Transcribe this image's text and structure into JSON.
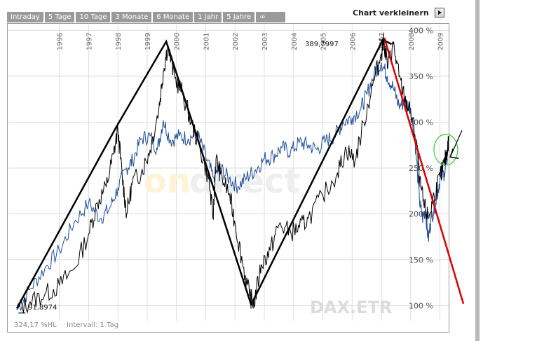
{
  "tabs": [
    "Intraday",
    "5 Tage",
    "10 Tage",
    "3 Monate",
    "6 Monate",
    "1 Jahr",
    "5 Jahre",
    "∞"
  ],
  "shrink_label": "Chart verkleinern",
  "watermark": {
    "part1": "on",
    "part2": "direct"
  },
  "index_name": "DAX.ETR",
  "footer": {
    "left": "324,17 %HL",
    "right": "Intervall: 1 Tag"
  },
  "colors": {
    "dax_line": "#000000",
    "compare_line": "#1f4f9a",
    "trend_red": "#dd0000",
    "circle": "#33cc33",
    "grid": "#dddddd"
  },
  "chart_data": {
    "type": "line",
    "x_tick_labels": [
      "1996",
      "1997",
      "1998",
      "1999",
      "2000",
      "2001",
      "2002",
      "2003",
      "2004",
      "2005",
      "2006",
      "2007",
      "2008",
      "2009"
    ],
    "y_tick_labels": [
      "400 %",
      "350 %",
      "300 %",
      "250 %",
      "200 %",
      "150 %",
      "100 %"
    ],
    "ylim": [
      85,
      405
    ],
    "xlim": [
      1995.0,
      2010.3
    ],
    "grid": true,
    "annotations": {
      "min_label": "91,8974",
      "max_label": "389,7997",
      "min_point": [
        1995.2,
        91.9
      ],
      "max_point": [
        2007.55,
        389.8
      ]
    },
    "series": [
      {
        "values": [
          [
            1995.05,
            96
          ],
          [
            1995.5,
            104
          ],
          [
            1996.0,
            112
          ],
          [
            1996.5,
            122
          ],
          [
            1997.0,
            140
          ],
          [
            1997.5,
            178
          ],
          [
            1997.8,
            212
          ],
          [
            1998.1,
            230
          ],
          [
            1998.35,
            265
          ],
          [
            1998.5,
            292
          ],
          [
            1998.65,
            240
          ],
          [
            1998.8,
            200
          ],
          [
            1999.0,
            235
          ],
          [
            1999.3,
            245
          ],
          [
            1999.6,
            270
          ],
          [
            1999.9,
            315
          ],
          [
            2000.05,
            355
          ],
          [
            2000.2,
            383
          ],
          [
            2000.45,
            348
          ],
          [
            2000.7,
            332
          ],
          [
            2001.0,
            300
          ],
          [
            2001.3,
            272
          ],
          [
            2001.6,
            238
          ],
          [
            2001.75,
            195
          ],
          [
            2001.85,
            260
          ],
          [
            2002.0,
            243
          ],
          [
            2002.3,
            222
          ],
          [
            2002.5,
            190
          ],
          [
            2002.75,
            148
          ],
          [
            2003.0,
            110
          ],
          [
            2003.15,
            102
          ],
          [
            2003.4,
            145
          ],
          [
            2003.7,
            160
          ],
          [
            2004.0,
            188
          ],
          [
            2004.4,
            180
          ],
          [
            2004.7,
            185
          ],
          [
            2005.0,
            195
          ],
          [
            2005.5,
            220
          ],
          [
            2006.0,
            245
          ],
          [
            2006.3,
            270
          ],
          [
            2006.6,
            258
          ],
          [
            2006.9,
            300
          ],
          [
            2007.2,
            340
          ],
          [
            2007.5,
            375
          ],
          [
            2007.58,
            389.8
          ],
          [
            2007.72,
            360
          ],
          [
            2007.9,
            385
          ],
          [
            2008.1,
            350
          ],
          [
            2008.3,
            325
          ],
          [
            2008.5,
            310
          ],
          [
            2008.7,
            280
          ],
          [
            2008.8,
            235
          ],
          [
            2008.95,
            210
          ],
          [
            2009.1,
            195
          ],
          [
            2009.3,
            220
          ],
          [
            2009.5,
            240
          ],
          [
            2009.65,
            255
          ],
          [
            2009.75,
            270
          ],
          [
            2009.8,
            280
          ]
        ]
      },
      {
        "values": [
          [
            1995.05,
            95
          ],
          [
            1995.5,
            118
          ],
          [
            1996.0,
            140
          ],
          [
            1996.5,
            160
          ],
          [
            1997.0,
            190
          ],
          [
            1997.5,
            212
          ],
          [
            1997.9,
            195
          ],
          [
            1998.2,
            205
          ],
          [
            1998.5,
            228
          ],
          [
            1998.8,
            250
          ],
          [
            1999.0,
            258
          ],
          [
            1999.3,
            282
          ],
          [
            1999.6,
            285
          ],
          [
            1999.85,
            270
          ],
          [
            2000.05,
            302
          ],
          [
            2000.3,
            280
          ],
          [
            2000.6,
            285
          ],
          [
            2000.9,
            282
          ],
          [
            2001.2,
            288
          ],
          [
            2001.5,
            262
          ],
          [
            2001.75,
            240
          ],
          [
            2002.0,
            250
          ],
          [
            2002.3,
            238
          ],
          [
            2002.6,
            230
          ],
          [
            2002.9,
            240
          ],
          [
            2003.2,
            248
          ],
          [
            2003.5,
            260
          ],
          [
            2003.8,
            263
          ],
          [
            2004.1,
            272
          ],
          [
            2004.4,
            268
          ],
          [
            2004.7,
            278
          ],
          [
            2005.0,
            275
          ],
          [
            2005.3,
            270
          ],
          [
            2005.6,
            280
          ],
          [
            2005.9,
            285
          ],
          [
            2006.2,
            300
          ],
          [
            2006.5,
            305
          ],
          [
            2006.8,
            315
          ],
          [
            2007.0,
            330
          ],
          [
            2007.25,
            352
          ],
          [
            2007.5,
            365
          ],
          [
            2007.7,
            350
          ],
          [
            2007.9,
            338
          ],
          [
            2008.1,
            318
          ],
          [
            2008.3,
            322
          ],
          [
            2008.5,
            315
          ],
          [
            2008.65,
            280
          ],
          [
            2008.8,
            215
          ],
          [
            2008.9,
            195
          ],
          [
            2009.0,
            205
          ],
          [
            2009.1,
            172
          ],
          [
            2009.2,
            195
          ],
          [
            2009.35,
            212
          ],
          [
            2009.5,
            238
          ],
          [
            2009.65,
            245
          ],
          [
            2009.75,
            260
          ]
        ]
      }
    ]
  },
  "drawings": {
    "zigzag": [
      [
        1995.05,
        97
      ],
      [
        1998.45,
        295
      ],
      [
        2000.15,
        388
      ],
      [
        2003.05,
        101
      ],
      [
        2007.55,
        390
      ],
      [
        2007.85,
        385
      ]
    ],
    "red_trend": [
      [
        2007.6,
        392
      ],
      [
        2010.3,
        102
      ]
    ],
    "circle_center": [
      2009.7,
      270
    ],
    "arrow_from": [
      2010.25,
      291
    ],
    "arrow_to": [
      2009.85,
      262
    ]
  }
}
